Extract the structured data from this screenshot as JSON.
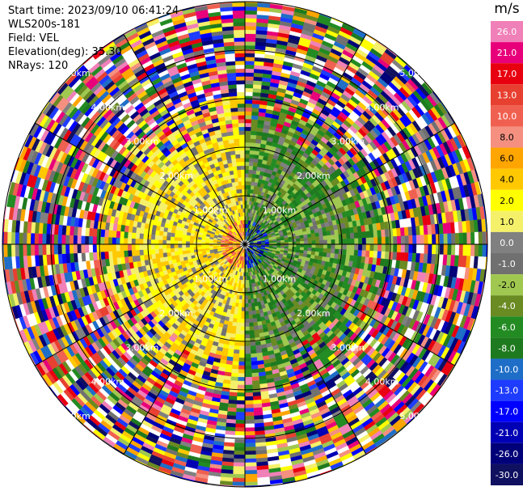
{
  "header": {
    "start_time": "Start time: 2023/09/10 06:41:24",
    "instrument": "WLS200s-181",
    "field": "Field: VEL",
    "elevation": "Elevation(deg): 35.30",
    "nrays": "NRays: 120"
  },
  "chart_data": {
    "type": "ppi",
    "title": "",
    "field": "VEL",
    "units": "m/s",
    "n_rays": 120,
    "range_max_km": 5.0,
    "range_rings_km": [
      1.0,
      2.0,
      3.0,
      4.0,
      5.0
    ],
    "ring_labels": [
      "1.00km",
      "2.00km",
      "3.00km",
      "4.00km",
      "5.00km"
    ],
    "azimuth_lines_deg": [
      0,
      30,
      60,
      90,
      120,
      150,
      180,
      210,
      240,
      270,
      300,
      330
    ],
    "colorbar": {
      "label": "m/s",
      "ticks": [
        "26.0",
        "21.0",
        "17.0",
        "13.0",
        "10.0",
        "8.0",
        "6.0",
        "4.0",
        "2.0",
        "1.0",
        "0.0",
        "-1.0",
        "-2.0",
        "-4.0",
        "-6.0",
        "-8.0",
        "-10.0",
        "-13.0",
        "-17.0",
        "-21.0",
        "-26.0",
        "-30.0"
      ],
      "colors": [
        "#f080b8",
        "#e8007a",
        "#e80010",
        "#e84030",
        "#f06050",
        "#f59080",
        "#ffa500",
        "#ffc800",
        "#ffff00",
        "#f5f06a",
        "#808080",
        "#707070",
        "#a0c850",
        "#6a8a22",
        "#228b22",
        "#1e7a1e",
        "#1e6ec8",
        "#1e3cff",
        "#0000ff",
        "#0000b4",
        "#000078",
        "#101060"
      ]
    }
  }
}
